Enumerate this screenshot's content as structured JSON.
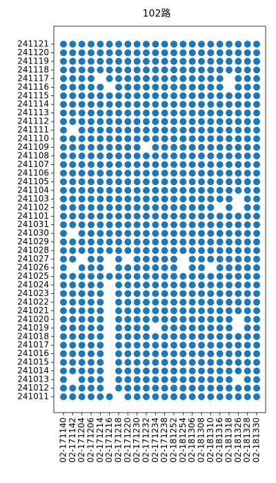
{
  "chart_data": {
    "type": "scatter",
    "title": "102路",
    "color": "#1f77b4",
    "x": [
      "02-171140",
      "02-171142",
      "02-171204",
      "02-171206",
      "02-171214",
      "02-171216",
      "02-171218",
      "02-171220",
      "02-171230",
      "02-171232",
      "02-171234",
      "02-171238",
      "02-181252",
      "02-181254",
      "02-181306",
      "02-181308",
      "02-181310",
      "02-181316",
      "02-181318",
      "02-181326",
      "02-181328",
      "02-181330"
    ],
    "y": [
      "241011",
      "241012",
      "241013",
      "241014",
      "241015",
      "241016",
      "241017",
      "241018",
      "241019",
      "241020",
      "241021",
      "241022",
      "241023",
      "241024",
      "241025",
      "241026",
      "241027",
      "241028",
      "241029",
      "241030",
      "241031",
      "241101",
      "241102",
      "241103",
      "241104",
      "241105",
      "241106",
      "241107",
      "241108",
      "241109",
      "241110",
      "241111",
      "241112",
      "241113",
      "241114",
      "241115",
      "241116",
      "241117",
      "241118",
      "241119",
      "241120",
      "241121"
    ],
    "values": [
      [
        1,
        1,
        1,
        1,
        1,
        1,
        null,
        1,
        1,
        1,
        1,
        1,
        1,
        1,
        1,
        1,
        1,
        1,
        1,
        1,
        1,
        1
      ],
      [
        1,
        1,
        1,
        1,
        1,
        null,
        1,
        1,
        1,
        1,
        1,
        1,
        1,
        1,
        1,
        1,
        1,
        1,
        1,
        1,
        1,
        1
      ],
      [
        1,
        null,
        1,
        1,
        1,
        null,
        1,
        1,
        1,
        1,
        1,
        1,
        1,
        1,
        1,
        1,
        1,
        1,
        1,
        null,
        1,
        1
      ],
      [
        1,
        1,
        1,
        1,
        1,
        null,
        1,
        1,
        1,
        1,
        1,
        1,
        1,
        1,
        1,
        1,
        1,
        1,
        1,
        1,
        1,
        1
      ],
      [
        1,
        1,
        1,
        1,
        1,
        null,
        1,
        1,
        1,
        1,
        1,
        1,
        1,
        1,
        1,
        1,
        1,
        1,
        1,
        1,
        1,
        1
      ],
      [
        1,
        1,
        1,
        1,
        1,
        null,
        1,
        1,
        1,
        1,
        1,
        1,
        1,
        1,
        1,
        1,
        1,
        1,
        1,
        1,
        1,
        1
      ],
      [
        1,
        1,
        1,
        1,
        1,
        null,
        1,
        1,
        1,
        1,
        1,
        1,
        1,
        1,
        1,
        1,
        1,
        1,
        1,
        1,
        1,
        1
      ],
      [
        1,
        1,
        1,
        1,
        1,
        null,
        1,
        1,
        1,
        1,
        1,
        1,
        1,
        1,
        1,
        1,
        1,
        1,
        1,
        1,
        1,
        1
      ],
      [
        1,
        1,
        1,
        1,
        1,
        null,
        1,
        1,
        1,
        1,
        null,
        1,
        1,
        1,
        1,
        1,
        1,
        1,
        1,
        null,
        1,
        1
      ],
      [
        1,
        1,
        1,
        1,
        1,
        null,
        1,
        1,
        1,
        1,
        1,
        1,
        1,
        1,
        1,
        1,
        1,
        1,
        1,
        null,
        1,
        1
      ],
      [
        1,
        1,
        1,
        1,
        1,
        null,
        1,
        1,
        1,
        1,
        1,
        1,
        1,
        1,
        1,
        1,
        1,
        1,
        1,
        1,
        1,
        1
      ],
      [
        1,
        1,
        1,
        1,
        1,
        null,
        1,
        1,
        1,
        1,
        1,
        1,
        1,
        1,
        1,
        1,
        1,
        1,
        1,
        1,
        1,
        1
      ],
      [
        1,
        1,
        1,
        1,
        1,
        null,
        1,
        1,
        1,
        1,
        1,
        1,
        1,
        1,
        1,
        1,
        1,
        1,
        1,
        1,
        1,
        1
      ],
      [
        1,
        1,
        1,
        1,
        1,
        null,
        1,
        1,
        1,
        1,
        1,
        1,
        1,
        1,
        1,
        1,
        1,
        1,
        1,
        1,
        1,
        1
      ],
      [
        1,
        1,
        1,
        1,
        1,
        1,
        1,
        1,
        1,
        1,
        1,
        1,
        1,
        1,
        1,
        1,
        1,
        1,
        1,
        1,
        1,
        1
      ],
      [
        1,
        null,
        1,
        1,
        1,
        null,
        1,
        1,
        1,
        1,
        1,
        1,
        1,
        null,
        1,
        1,
        null,
        1,
        1,
        1,
        1,
        1
      ],
      [
        1,
        1,
        null,
        1,
        1,
        null,
        1,
        null,
        1,
        1,
        1,
        1,
        1,
        null,
        1,
        1,
        1,
        1,
        1,
        1,
        1,
        1
      ],
      [
        1,
        1,
        1,
        1,
        1,
        1,
        1,
        1,
        1,
        1,
        1,
        1,
        1,
        1,
        1,
        1,
        1,
        1,
        1,
        1,
        1,
        1
      ],
      [
        1,
        1,
        1,
        1,
        1,
        1,
        1,
        1,
        1,
        1,
        1,
        1,
        1,
        1,
        1,
        1,
        1,
        1,
        1,
        1,
        1,
        1
      ],
      [
        1,
        null,
        1,
        1,
        1,
        1,
        1,
        1,
        1,
        1,
        1,
        1,
        1,
        1,
        1,
        1,
        1,
        1,
        1,
        1,
        1,
        1
      ],
      [
        1,
        1,
        1,
        1,
        1,
        1,
        1,
        1,
        1,
        1,
        1,
        1,
        1,
        1,
        1,
        1,
        1,
        1,
        1,
        1,
        1,
        1
      ],
      [
        1,
        1,
        1,
        1,
        1,
        1,
        1,
        1,
        1,
        1,
        1,
        1,
        1,
        1,
        1,
        1,
        1,
        1,
        1,
        1,
        1,
        1
      ],
      [
        1,
        1,
        1,
        1,
        1,
        1,
        1,
        1,
        1,
        1,
        1,
        1,
        1,
        1,
        1,
        1,
        1,
        null,
        1,
        null,
        1,
        1
      ],
      [
        1,
        1,
        1,
        1,
        1,
        1,
        1,
        1,
        1,
        1,
        1,
        1,
        1,
        1,
        1,
        1,
        1,
        1,
        1,
        null,
        1,
        1
      ],
      [
        1,
        1,
        1,
        1,
        1,
        1,
        1,
        1,
        1,
        1,
        1,
        1,
        1,
        1,
        1,
        1,
        1,
        1,
        1,
        1,
        1,
        1
      ],
      [
        1,
        1,
        1,
        1,
        1,
        1,
        1,
        1,
        1,
        1,
        1,
        1,
        1,
        1,
        1,
        1,
        1,
        1,
        1,
        1,
        1,
        1
      ],
      [
        1,
        1,
        1,
        1,
        1,
        1,
        1,
        1,
        1,
        1,
        1,
        1,
        1,
        1,
        1,
        1,
        1,
        1,
        1,
        1,
        1,
        1
      ],
      [
        1,
        1,
        1,
        1,
        1,
        1,
        1,
        1,
        1,
        1,
        1,
        1,
        1,
        1,
        1,
        1,
        1,
        1,
        1,
        1,
        1,
        1
      ],
      [
        1,
        1,
        1,
        1,
        1,
        1,
        1,
        1,
        1,
        1,
        1,
        1,
        1,
        1,
        1,
        1,
        1,
        1,
        1,
        1,
        1,
        1
      ],
      [
        1,
        1,
        1,
        1,
        1,
        1,
        1,
        1,
        1,
        null,
        1,
        1,
        1,
        1,
        1,
        1,
        1,
        1,
        1,
        1,
        1,
        1
      ],
      [
        1,
        1,
        1,
        1,
        1,
        1,
        1,
        1,
        1,
        1,
        1,
        1,
        1,
        1,
        1,
        1,
        1,
        1,
        1,
        1,
        1,
        1
      ],
      [
        1,
        null,
        1,
        1,
        1,
        1,
        1,
        1,
        1,
        1,
        1,
        1,
        1,
        1,
        1,
        1,
        1,
        1,
        1,
        1,
        1,
        1
      ],
      [
        1,
        1,
        1,
        1,
        1,
        1,
        1,
        1,
        1,
        1,
        1,
        1,
        1,
        1,
        1,
        1,
        1,
        1,
        1,
        1,
        1,
        1
      ],
      [
        1,
        1,
        1,
        1,
        1,
        1,
        1,
        1,
        1,
        1,
        1,
        1,
        1,
        1,
        1,
        1,
        1,
        1,
        1,
        1,
        1,
        1
      ],
      [
        1,
        1,
        1,
        1,
        1,
        1,
        1,
        1,
        1,
        1,
        1,
        1,
        1,
        1,
        1,
        1,
        1,
        1,
        1,
        1,
        1,
        1
      ],
      [
        1,
        1,
        1,
        1,
        1,
        1,
        1,
        1,
        1,
        1,
        1,
        1,
        1,
        1,
        1,
        1,
        1,
        1,
        1,
        1,
        1,
        1
      ],
      [
        1,
        1,
        1,
        1,
        1,
        null,
        1,
        1,
        1,
        1,
        1,
        1,
        1,
        1,
        1,
        1,
        1,
        1,
        null,
        1,
        1,
        1
      ],
      [
        1,
        1,
        1,
        1,
        null,
        1,
        1,
        1,
        1,
        1,
        1,
        1,
        1,
        1,
        1,
        1,
        1,
        1,
        null,
        1,
        1,
        1
      ],
      [
        1,
        1,
        1,
        1,
        1,
        1,
        1,
        1,
        1,
        1,
        1,
        1,
        1,
        1,
        1,
        1,
        1,
        1,
        1,
        1,
        1,
        1
      ],
      [
        1,
        1,
        1,
        1,
        1,
        1,
        1,
        1,
        1,
        1,
        1,
        1,
        1,
        1,
        1,
        1,
        1,
        1,
        1,
        1,
        1,
        1
      ],
      [
        1,
        1,
        1,
        1,
        1,
        1,
        1,
        1,
        1,
        1,
        1,
        1,
        1,
        1,
        1,
        1,
        1,
        1,
        1,
        1,
        1,
        1
      ],
      [
        1,
        1,
        1,
        1,
        1,
        1,
        1,
        1,
        1,
        1,
        1,
        1,
        1,
        1,
        1,
        1,
        1,
        1,
        1,
        1,
        1,
        1
      ]
    ]
  }
}
